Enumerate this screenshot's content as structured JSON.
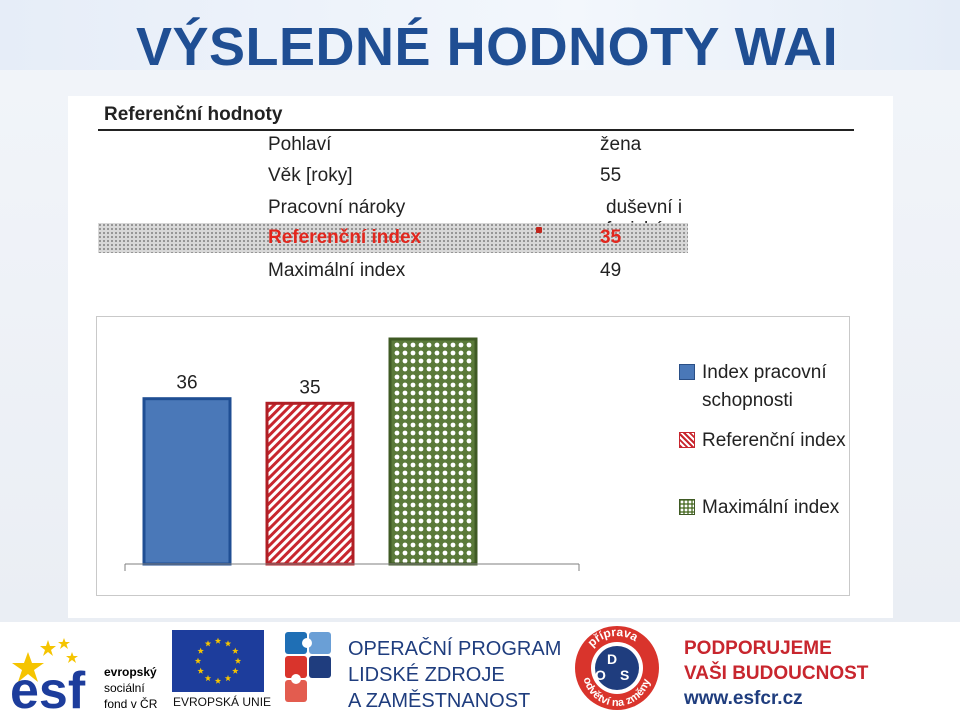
{
  "slide": {
    "title": "VÝSLEDNÉ HODNOTY WAI"
  },
  "reference_table": {
    "title": "Referenční hodnoty",
    "rows": [
      {
        "label": "Pohlaví",
        "value": "žena"
      },
      {
        "label": "Věk [roky]",
        "value": "55"
      },
      {
        "label": "Pracovní nároky",
        "value": "duševní i fyzické"
      },
      {
        "label": "Referenční index",
        "value": "35"
      },
      {
        "label": "Maximální index",
        "value": "49"
      }
    ]
  },
  "chart_data": {
    "type": "bar",
    "categories": [
      "Index pracovní schopnosti",
      "Referenční index",
      "Maximální index"
    ],
    "values": [
      36,
      35,
      49
    ],
    "data_labels": [
      "36",
      "35",
      ""
    ],
    "ylim": [
      0,
      49
    ],
    "grid": false,
    "legend_position": "right",
    "colors": [
      "#4a78b8",
      "#c8262e",
      "#5b7a3a"
    ],
    "legend": [
      {
        "line1": "Index pracovní",
        "line2": "schopnosti"
      },
      {
        "line1": "Referenční index",
        "line2": ""
      },
      {
        "line1": "Maximální index",
        "line2": ""
      }
    ]
  },
  "footer": {
    "esf": {
      "mark": "esf",
      "line1": "evropský",
      "line2": "sociální",
      "line3": "fond v ČR"
    },
    "eu_label": "EVROPSKÁ UNIE",
    "program": {
      "line1": "OPERAČNÍ PROGRAM",
      "line2": "LIDSKÉ ZDROJE",
      "line3": "A ZAMĚSTNANOST"
    },
    "ods": {
      "arc_top": "příprava",
      "arc_bottom": "odvětví na změny",
      "letters": [
        "D",
        "O",
        "S"
      ]
    },
    "slogan": {
      "line1": "PODPORUJEME",
      "line2": "VAŠI BUDOUCNOST",
      "line3": "www.esfcr.cz"
    }
  }
}
